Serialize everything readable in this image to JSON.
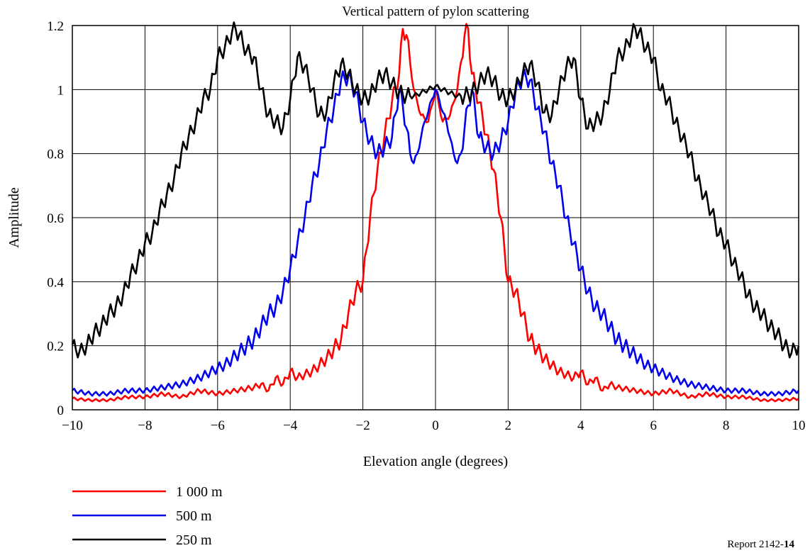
{
  "chart_data": {
    "type": "line",
    "title": "Vertical pattern of pylon scattering",
    "xlabel": "Elevation angle (degrees)",
    "ylabel": "Amplitude",
    "xlim": [
      -10,
      10
    ],
    "ylim": [
      0,
      1.2
    ],
    "x_ticks": [
      "−10",
      "−8",
      "−6",
      "−4",
      "−2",
      "0",
      "2",
      "4",
      "6",
      "8",
      "10"
    ],
    "y_ticks": [
      "0",
      "0.2",
      "0.4",
      "0.6",
      "0.8",
      "1",
      "1.2"
    ],
    "grid": true,
    "legend_position": "bottom-left",
    "series": [
      {
        "name": "1 000 m",
        "color": "#ff0000",
        "x": [
          0,
          0.2,
          0.4,
          0.6,
          0.8,
          0.9,
          1.0,
          1.2,
          1.4,
          1.6,
          1.8,
          1.9,
          2.0,
          2.2,
          2.4,
          2.6,
          2.8,
          3.0,
          3.2,
          3.4,
          3.6,
          3.8,
          4.0,
          4.2,
          4.4,
          4.6,
          4.8,
          5.0,
          5.5,
          6.0,
          6.5,
          7.0,
          7.5,
          8.0,
          8.5,
          9.0,
          9.5,
          10.0
        ],
        "y": [
          1.0,
          0.9,
          0.92,
          1.0,
          1.17,
          1.19,
          1.05,
          0.96,
          0.86,
          0.75,
          0.6,
          0.5,
          0.4,
          0.37,
          0.3,
          0.22,
          0.19,
          0.16,
          0.14,
          0.12,
          0.11,
          0.1,
          0.12,
          0.08,
          0.1,
          0.06,
          0.08,
          0.07,
          0.06,
          0.05,
          0.06,
          0.04,
          0.05,
          0.04,
          0.04,
          0.03,
          0.03,
          0.035
        ]
      },
      {
        "name": "500 m",
        "color": "#0000ee",
        "x": [
          0,
          0.1,
          0.2,
          0.3,
          0.4,
          0.5,
          0.6,
          0.7,
          0.8,
          0.9,
          1.0,
          1.2,
          1.4,
          1.6,
          1.8,
          2.0,
          2.2,
          2.4,
          2.6,
          2.8,
          3.0,
          3.2,
          3.4,
          3.6,
          3.8,
          4.0,
          4.2,
          4.4,
          4.6,
          4.8,
          5.0,
          5.2,
          5.4,
          5.6,
          5.8,
          6.0,
          6.5,
          7.0,
          7.5,
          8.0,
          8.5,
          9.0,
          9.5,
          10.0
        ],
        "y": [
          1.0,
          0.97,
          0.93,
          0.9,
          0.85,
          0.8,
          0.77,
          0.8,
          0.88,
          0.95,
          1.0,
          0.85,
          0.82,
          0.8,
          0.84,
          0.9,
          0.99,
          1.04,
          1.03,
          0.94,
          0.87,
          0.77,
          0.7,
          0.6,
          0.52,
          0.44,
          0.37,
          0.32,
          0.3,
          0.26,
          0.22,
          0.2,
          0.18,
          0.16,
          0.14,
          0.13,
          0.1,
          0.08,
          0.07,
          0.06,
          0.06,
          0.05,
          0.05,
          0.06
        ]
      },
      {
        "name": "250 m",
        "color": "#000000",
        "x": [
          0,
          0.2,
          0.4,
          0.6,
          0.8,
          1.0,
          1.2,
          1.4,
          1.6,
          1.8,
          2.0,
          2.2,
          2.4,
          2.6,
          2.8,
          3.0,
          3.2,
          3.4,
          3.6,
          3.8,
          4.0,
          4.2,
          4.4,
          4.6,
          4.8,
          5.0,
          5.2,
          5.4,
          5.5,
          5.6,
          5.8,
          6.0,
          6.2,
          6.4,
          6.6,
          6.8,
          7.0,
          7.2,
          7.4,
          7.6,
          7.8,
          8.0,
          8.2,
          8.4,
          8.6,
          8.8,
          9.0,
          9.2,
          9.4,
          9.6,
          9.8,
          10.0
        ],
        "y": [
          1.01,
          1.0,
          0.99,
          0.98,
          0.98,
          0.99,
          1.02,
          1.05,
          1.03,
          0.98,
          0.97,
          1.0,
          1.05,
          1.08,
          1.02,
          0.93,
          0.92,
          1.0,
          1.07,
          1.1,
          0.97,
          0.88,
          0.9,
          0.92,
          1.0,
          1.1,
          1.12,
          1.17,
          1.19,
          1.18,
          1.13,
          1.1,
          1.0,
          0.97,
          0.9,
          0.85,
          0.8,
          0.72,
          0.67,
          0.62,
          0.55,
          0.52,
          0.46,
          0.42,
          0.36,
          0.32,
          0.3,
          0.26,
          0.24,
          0.2,
          0.18,
          0.2
        ]
      }
    ]
  },
  "report_label": {
    "prefix": "Report 2142-",
    "number": "14"
  }
}
